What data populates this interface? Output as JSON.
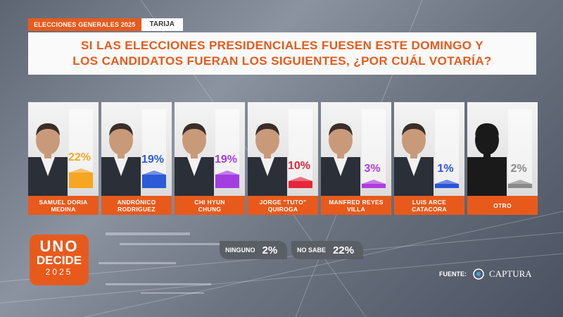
{
  "header": {
    "election_tag": "ELECCIONES GENERALES 2025",
    "region_tag": "TARIJA",
    "question_line1": "SI LAS ELECCIONES PRESIDENCIALES FUESEN ESTE DOMINGO Y",
    "question_line2": "LOS CANDIDATOS FUERAN LOS SIGUIENTES, ¿POR CUÁL VOTARÍA?"
  },
  "chart_data": {
    "type": "bar",
    "title": "SI LAS ELECCIONES PRESIDENCIALES FUESEN ESTE DOMINGO Y LOS CANDIDATOS FUERAN LOS SIGUIENTES, ¿POR CUÁL VOTARÍA?",
    "unit": "%",
    "ylim": [
      0,
      100
    ],
    "categories": [
      [
        "SAMUEL DORIA",
        "MEDINA"
      ],
      [
        "ANDRÓNICO",
        "RODRIGUEZ"
      ],
      [
        "CHI HYUN",
        "CHUNG"
      ],
      [
        "JORGE \"TUTO\"",
        "QUIROGA"
      ],
      [
        "MANFRED REYES",
        "VILLA"
      ],
      [
        "LUIS ARCE",
        "CATACORA"
      ],
      [
        "OTRO"
      ]
    ],
    "values": [
      22,
      19,
      19,
      10,
      3,
      1,
      2
    ],
    "value_labels": [
      "22%",
      "19%",
      "19%",
      "10%",
      "3%",
      "1%",
      "2%"
    ],
    "colors": [
      "#f5a623",
      "#2d5bd8",
      "#a33ee0",
      "#e6263a",
      "#b03ee0",
      "#2d55d8",
      "#8a8a8a"
    ],
    "extra": [
      {
        "label": "NINGUNO",
        "value": 2,
        "value_label": "2%"
      },
      {
        "label": "NO SABE",
        "value": 22,
        "value_label": "22%"
      }
    ]
  },
  "branding": {
    "logo_line1": "UNO",
    "logo_line2": "DECIDE",
    "logo_line3": "2025",
    "source_label": "FUENTE:",
    "source_name": "CAPTURA"
  }
}
